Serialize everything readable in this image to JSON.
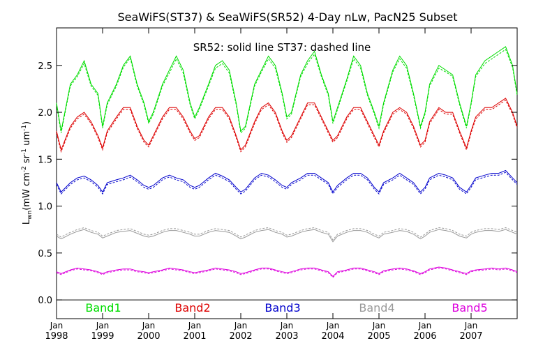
{
  "chart_data": {
    "type": "line",
    "title": "SeaWiFS(ST37) & SeaWiFS(SR52) 4-Day nLw, PacN25 Subset",
    "subtitle": "SR52: solid line   ST37: dashed line",
    "ylabel": "L",
    "ylabel_sub": "wn",
    "ylabel_units": "(mW cm",
    "ylabel_exp1": "-2",
    "ylabel_mid1": " sr",
    "ylabel_exp2": "-1",
    "ylabel_mid2": " um",
    "ylabel_exp3": "-1",
    "ylabel_end": ")",
    "xlabel": "",
    "xlim": [
      1998.0,
      2008.0
    ],
    "ylim": [
      -0.2,
      2.9
    ],
    "y_ticks": [
      0.0,
      0.5,
      1.0,
      1.5,
      2.0,
      2.5
    ],
    "y_tick_labels": [
      "0.0",
      "0.5",
      "1.0",
      "1.5",
      "2.0",
      "2.5"
    ],
    "x_ticks": [
      1998,
      1999,
      2000,
      2001,
      2002,
      2003,
      2004,
      2005,
      2006,
      2007
    ],
    "x_tick_month": "Jan",
    "x_tick_labels": [
      "1998",
      "1999",
      "2000",
      "2001",
      "2002",
      "2003",
      "2004",
      "2005",
      "2006",
      "2007"
    ],
    "zero_line": 0.0,
    "legend_position": "bottom",
    "series": [
      {
        "name": "Band1",
        "color": "#00dd00",
        "x": [
          1998.0,
          1998.1,
          1998.3,
          1998.45,
          1998.6,
          1998.75,
          1998.9,
          1999.0,
          1999.1,
          1999.3,
          1999.45,
          1999.6,
          1999.75,
          1999.9,
          2000.0,
          2000.1,
          2000.3,
          2000.45,
          2000.6,
          2000.75,
          2000.9,
          2001.0,
          2001.1,
          2001.3,
          2001.45,
          2001.6,
          2001.75,
          2001.9,
          2002.0,
          2002.1,
          2002.3,
          2002.45,
          2002.6,
          2002.75,
          2002.9,
          2003.0,
          2003.1,
          2003.3,
          2003.45,
          2003.6,
          2003.75,
          2003.9,
          2004.0,
          2004.1,
          2004.3,
          2004.45,
          2004.6,
          2004.75,
          2004.9,
          2005.0,
          2005.1,
          2005.3,
          2005.45,
          2005.6,
          2005.75,
          2005.9,
          2006.0,
          2006.1,
          2006.3,
          2006.45,
          2006.6,
          2006.75,
          2006.9,
          2007.0,
          2007.1,
          2007.3,
          2007.45,
          2007.6,
          2007.75,
          2007.9,
          2008.0
        ],
        "solid": [
          2.1,
          1.8,
          2.3,
          2.4,
          2.55,
          2.3,
          2.2,
          1.85,
          2.1,
          2.3,
          2.5,
          2.6,
          2.3,
          2.1,
          1.9,
          2.0,
          2.3,
          2.45,
          2.6,
          2.45,
          2.1,
          1.95,
          2.05,
          2.3,
          2.5,
          2.55,
          2.45,
          2.1,
          1.8,
          1.85,
          2.3,
          2.45,
          2.6,
          2.5,
          2.2,
          1.95,
          2.0,
          2.4,
          2.55,
          2.65,
          2.4,
          2.2,
          1.9,
          2.05,
          2.35,
          2.6,
          2.5,
          2.2,
          2.0,
          1.85,
          2.1,
          2.45,
          2.6,
          2.5,
          2.2,
          1.85,
          2.0,
          2.3,
          2.5,
          2.45,
          2.4,
          2.1,
          1.85,
          2.1,
          2.4,
          2.55,
          2.6,
          2.65,
          2.7,
          2.5,
          2.2
        ],
        "dashed": [
          2.08,
          1.78,
          2.28,
          2.38,
          2.52,
          2.28,
          2.18,
          1.83,
          2.08,
          2.28,
          2.48,
          2.58,
          2.28,
          2.08,
          1.88,
          1.98,
          2.28,
          2.42,
          2.57,
          2.42,
          2.08,
          1.93,
          2.03,
          2.28,
          2.47,
          2.52,
          2.42,
          2.08,
          1.78,
          1.83,
          2.28,
          2.43,
          2.57,
          2.47,
          2.18,
          1.93,
          1.98,
          2.38,
          2.52,
          2.62,
          2.38,
          2.18,
          1.88,
          2.03,
          2.33,
          2.57,
          2.47,
          2.18,
          1.98,
          1.83,
          2.08,
          2.43,
          2.57,
          2.47,
          2.18,
          1.83,
          1.98,
          2.28,
          2.47,
          2.43,
          2.38,
          2.08,
          1.83,
          2.08,
          2.38,
          2.52,
          2.57,
          2.62,
          2.67,
          2.48,
          2.18
        ]
      },
      {
        "name": "Band2",
        "color": "#dd0000",
        "x": [
          1998.0,
          1998.1,
          1998.3,
          1998.45,
          1998.6,
          1998.75,
          1998.9,
          1999.0,
          1999.1,
          1999.3,
          1999.45,
          1999.6,
          1999.75,
          1999.9,
          2000.0,
          2000.1,
          2000.3,
          2000.45,
          2000.6,
          2000.75,
          2000.9,
          2001.0,
          2001.1,
          2001.3,
          2001.45,
          2001.6,
          2001.75,
          2001.9,
          2002.0,
          2002.1,
          2002.3,
          2002.45,
          2002.6,
          2002.75,
          2002.9,
          2003.0,
          2003.1,
          2003.3,
          2003.45,
          2003.6,
          2003.75,
          2003.9,
          2004.0,
          2004.1,
          2004.3,
          2004.45,
          2004.6,
          2004.75,
          2004.9,
          2005.0,
          2005.1,
          2005.3,
          2005.45,
          2005.6,
          2005.75,
          2005.9,
          2006.0,
          2006.1,
          2006.3,
          2006.45,
          2006.6,
          2006.75,
          2006.9,
          2007.0,
          2007.1,
          2007.3,
          2007.45,
          2007.6,
          2007.75,
          2007.9,
          2008.0
        ],
        "solid": [
          1.8,
          1.6,
          1.85,
          1.95,
          2.0,
          1.9,
          1.75,
          1.62,
          1.8,
          1.95,
          2.05,
          2.05,
          1.85,
          1.7,
          1.65,
          1.75,
          1.95,
          2.05,
          2.05,
          1.95,
          1.8,
          1.72,
          1.75,
          1.95,
          2.05,
          2.05,
          1.95,
          1.75,
          1.6,
          1.65,
          1.9,
          2.05,
          2.1,
          2.0,
          1.8,
          1.7,
          1.75,
          1.95,
          2.1,
          2.1,
          1.95,
          1.8,
          1.7,
          1.75,
          1.95,
          2.05,
          2.05,
          1.9,
          1.75,
          1.65,
          1.8,
          2.0,
          2.05,
          2.0,
          1.85,
          1.65,
          1.7,
          1.9,
          2.05,
          2.0,
          2.0,
          1.8,
          1.62,
          1.8,
          1.95,
          2.05,
          2.05,
          2.1,
          2.15,
          2.0,
          1.85
        ],
        "dashed": [
          1.78,
          1.58,
          1.83,
          1.93,
          1.98,
          1.88,
          1.73,
          1.6,
          1.78,
          1.93,
          2.03,
          2.03,
          1.83,
          1.68,
          1.63,
          1.73,
          1.93,
          2.03,
          2.03,
          1.93,
          1.78,
          1.7,
          1.73,
          1.93,
          2.03,
          2.03,
          1.93,
          1.73,
          1.58,
          1.63,
          1.88,
          2.03,
          2.08,
          1.98,
          1.78,
          1.68,
          1.73,
          1.93,
          2.08,
          2.08,
          1.93,
          1.78,
          1.68,
          1.73,
          1.93,
          2.03,
          2.03,
          1.88,
          1.73,
          1.63,
          1.78,
          1.98,
          2.03,
          1.98,
          1.83,
          1.63,
          1.68,
          1.88,
          2.03,
          1.98,
          1.98,
          1.78,
          1.6,
          1.78,
          1.93,
          2.03,
          2.03,
          2.08,
          2.13,
          1.98,
          1.83
        ]
      },
      {
        "name": "Band3",
        "color": "#0000cc",
        "x": [
          1998.0,
          1998.1,
          1998.3,
          1998.45,
          1998.6,
          1998.75,
          1998.9,
          1999.0,
          1999.1,
          1999.3,
          1999.45,
          1999.6,
          1999.75,
          1999.9,
          2000.0,
          2000.1,
          2000.3,
          2000.45,
          2000.6,
          2000.75,
          2000.9,
          2001.0,
          2001.1,
          2001.3,
          2001.45,
          2001.6,
          2001.75,
          2001.9,
          2002.0,
          2002.1,
          2002.3,
          2002.45,
          2002.6,
          2002.75,
          2002.9,
          2003.0,
          2003.1,
          2003.3,
          2003.45,
          2003.6,
          2003.75,
          2003.9,
          2004.0,
          2004.1,
          2004.3,
          2004.45,
          2004.6,
          2004.75,
          2004.9,
          2005.0,
          2005.1,
          2005.3,
          2005.45,
          2005.6,
          2005.75,
          2005.9,
          2006.0,
          2006.1,
          2006.3,
          2006.45,
          2006.6,
          2006.75,
          2006.9,
          2007.0,
          2007.1,
          2007.3,
          2007.45,
          2007.6,
          2007.75,
          2007.9,
          2008.0
        ],
        "solid": [
          1.25,
          1.15,
          1.25,
          1.3,
          1.32,
          1.28,
          1.22,
          1.15,
          1.25,
          1.28,
          1.3,
          1.33,
          1.28,
          1.22,
          1.2,
          1.22,
          1.3,
          1.33,
          1.3,
          1.28,
          1.22,
          1.2,
          1.22,
          1.3,
          1.35,
          1.32,
          1.28,
          1.2,
          1.15,
          1.18,
          1.3,
          1.35,
          1.33,
          1.28,
          1.22,
          1.2,
          1.25,
          1.3,
          1.35,
          1.35,
          1.3,
          1.25,
          1.15,
          1.22,
          1.3,
          1.35,
          1.35,
          1.3,
          1.2,
          1.15,
          1.25,
          1.3,
          1.35,
          1.3,
          1.25,
          1.15,
          1.2,
          1.3,
          1.35,
          1.33,
          1.3,
          1.2,
          1.15,
          1.22,
          1.3,
          1.33,
          1.35,
          1.35,
          1.38,
          1.3,
          1.25
        ],
        "dashed": [
          1.23,
          1.13,
          1.23,
          1.28,
          1.3,
          1.26,
          1.2,
          1.13,
          1.23,
          1.26,
          1.28,
          1.31,
          1.26,
          1.2,
          1.18,
          1.2,
          1.28,
          1.31,
          1.28,
          1.26,
          1.2,
          1.18,
          1.2,
          1.28,
          1.33,
          1.3,
          1.26,
          1.18,
          1.13,
          1.16,
          1.28,
          1.33,
          1.31,
          1.26,
          1.2,
          1.18,
          1.23,
          1.28,
          1.33,
          1.33,
          1.28,
          1.23,
          1.13,
          1.2,
          1.28,
          1.33,
          1.33,
          1.28,
          1.18,
          1.13,
          1.23,
          1.28,
          1.33,
          1.28,
          1.23,
          1.13,
          1.18,
          1.28,
          1.33,
          1.31,
          1.28,
          1.18,
          1.13,
          1.2,
          1.28,
          1.31,
          1.33,
          1.33,
          1.36,
          1.28,
          1.23
        ]
      },
      {
        "name": "Band4",
        "color": "#999999",
        "x": [
          1998.0,
          1998.1,
          1998.3,
          1998.45,
          1998.6,
          1998.75,
          1998.9,
          1999.0,
          1999.1,
          1999.3,
          1999.45,
          1999.6,
          1999.75,
          1999.9,
          2000.0,
          2000.1,
          2000.3,
          2000.45,
          2000.6,
          2000.75,
          2000.9,
          2001.0,
          2001.1,
          2001.3,
          2001.45,
          2001.6,
          2001.75,
          2001.9,
          2002.0,
          2002.1,
          2002.3,
          2002.45,
          2002.6,
          2002.75,
          2002.9,
          2003.0,
          2003.1,
          2003.3,
          2003.45,
          2003.6,
          2003.75,
          2003.9,
          2004.0,
          2004.1,
          2004.3,
          2004.45,
          2004.6,
          2004.75,
          2004.9,
          2005.0,
          2005.1,
          2005.3,
          2005.45,
          2005.6,
          2005.75,
          2005.9,
          2006.0,
          2006.1,
          2006.3,
          2006.45,
          2006.6,
          2006.75,
          2006.9,
          2007.0,
          2007.1,
          2007.3,
          2007.45,
          2007.6,
          2007.75,
          2007.9,
          2008.0
        ],
        "solid": [
          0.68,
          0.65,
          0.7,
          0.73,
          0.75,
          0.72,
          0.7,
          0.66,
          0.68,
          0.72,
          0.73,
          0.74,
          0.71,
          0.68,
          0.67,
          0.68,
          0.72,
          0.74,
          0.74,
          0.72,
          0.7,
          0.68,
          0.68,
          0.72,
          0.74,
          0.73,
          0.72,
          0.68,
          0.65,
          0.67,
          0.72,
          0.74,
          0.75,
          0.72,
          0.7,
          0.67,
          0.68,
          0.72,
          0.74,
          0.75,
          0.72,
          0.7,
          0.62,
          0.68,
          0.72,
          0.74,
          0.74,
          0.72,
          0.68,
          0.66,
          0.7,
          0.72,
          0.74,
          0.73,
          0.7,
          0.65,
          0.68,
          0.72,
          0.75,
          0.74,
          0.72,
          0.68,
          0.66,
          0.7,
          0.72,
          0.74,
          0.74,
          0.73,
          0.75,
          0.72,
          0.7
        ],
        "dashed": [
          0.7,
          0.67,
          0.72,
          0.75,
          0.77,
          0.74,
          0.72,
          0.68,
          0.7,
          0.74,
          0.75,
          0.76,
          0.73,
          0.7,
          0.69,
          0.7,
          0.74,
          0.76,
          0.76,
          0.74,
          0.72,
          0.7,
          0.7,
          0.74,
          0.76,
          0.75,
          0.74,
          0.7,
          0.67,
          0.69,
          0.74,
          0.76,
          0.77,
          0.74,
          0.72,
          0.69,
          0.7,
          0.74,
          0.76,
          0.77,
          0.74,
          0.72,
          0.64,
          0.7,
          0.74,
          0.76,
          0.76,
          0.74,
          0.7,
          0.68,
          0.72,
          0.74,
          0.76,
          0.75,
          0.72,
          0.67,
          0.7,
          0.74,
          0.77,
          0.76,
          0.74,
          0.7,
          0.68,
          0.72,
          0.74,
          0.76,
          0.76,
          0.75,
          0.77,
          0.74,
          0.72
        ]
      },
      {
        "name": "Band5",
        "color": "#dd00dd",
        "x": [
          1998.0,
          1998.1,
          1998.3,
          1998.45,
          1998.6,
          1998.75,
          1998.9,
          1999.0,
          1999.1,
          1999.3,
          1999.45,
          1999.6,
          1999.75,
          1999.9,
          2000.0,
          2000.1,
          2000.3,
          2000.45,
          2000.6,
          2000.75,
          2000.9,
          2001.0,
          2001.1,
          2001.3,
          2001.45,
          2001.6,
          2001.75,
          2001.9,
          2002.0,
          2002.1,
          2002.3,
          2002.45,
          2002.6,
          2002.75,
          2002.9,
          2003.0,
          2003.1,
          2003.3,
          2003.45,
          2003.6,
          2003.75,
          2003.9,
          2004.0,
          2004.1,
          2004.3,
          2004.45,
          2004.6,
          2004.75,
          2004.9,
          2005.0,
          2005.1,
          2005.3,
          2005.45,
          2005.6,
          2005.75,
          2005.9,
          2006.0,
          2006.1,
          2006.3,
          2006.45,
          2006.6,
          2006.75,
          2006.9,
          2007.0,
          2007.1,
          2007.3,
          2007.45,
          2007.6,
          2007.75,
          2007.9,
          2008.0
        ],
        "solid": [
          0.3,
          0.28,
          0.32,
          0.34,
          0.33,
          0.32,
          0.3,
          0.28,
          0.3,
          0.32,
          0.33,
          0.33,
          0.31,
          0.3,
          0.29,
          0.3,
          0.32,
          0.34,
          0.33,
          0.32,
          0.3,
          0.29,
          0.3,
          0.32,
          0.34,
          0.33,
          0.32,
          0.3,
          0.28,
          0.29,
          0.32,
          0.34,
          0.34,
          0.32,
          0.3,
          0.29,
          0.3,
          0.33,
          0.34,
          0.34,
          0.32,
          0.3,
          0.25,
          0.3,
          0.32,
          0.34,
          0.34,
          0.32,
          0.3,
          0.28,
          0.31,
          0.33,
          0.34,
          0.33,
          0.31,
          0.28,
          0.3,
          0.33,
          0.35,
          0.34,
          0.32,
          0.3,
          0.28,
          0.31,
          0.32,
          0.33,
          0.34,
          0.33,
          0.34,
          0.32,
          0.3
        ],
        "dashed": [
          0.29,
          0.27,
          0.31,
          0.33,
          0.32,
          0.31,
          0.29,
          0.27,
          0.29,
          0.31,
          0.32,
          0.32,
          0.3,
          0.29,
          0.28,
          0.29,
          0.31,
          0.33,
          0.32,
          0.31,
          0.29,
          0.28,
          0.29,
          0.31,
          0.33,
          0.32,
          0.31,
          0.29,
          0.27,
          0.28,
          0.31,
          0.33,
          0.33,
          0.31,
          0.29,
          0.28,
          0.29,
          0.32,
          0.33,
          0.33,
          0.31,
          0.29,
          0.24,
          0.29,
          0.31,
          0.33,
          0.33,
          0.31,
          0.29,
          0.27,
          0.3,
          0.32,
          0.33,
          0.32,
          0.3,
          0.27,
          0.29,
          0.32,
          0.34,
          0.33,
          0.31,
          0.29,
          0.27,
          0.3,
          0.31,
          0.32,
          0.33,
          0.32,
          0.33,
          0.31,
          0.29
        ]
      }
    ]
  }
}
